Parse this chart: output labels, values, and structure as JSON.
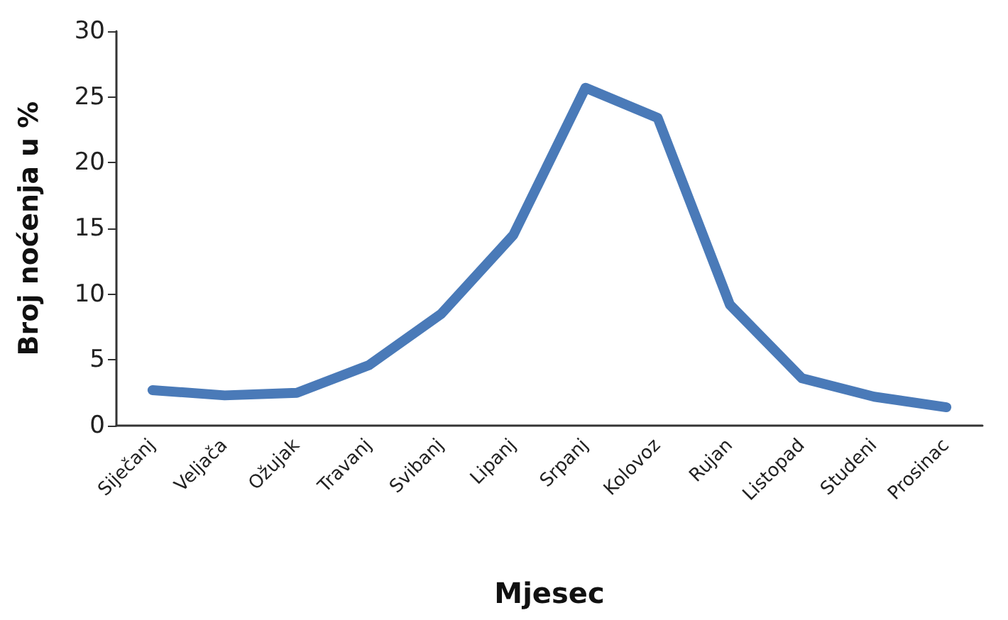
{
  "chart_data": {
    "type": "line",
    "xlabel": "Mjesec",
    "ylabel": "Broj noćenja u %",
    "categories": [
      "Siječanj",
      "Veljača",
      "Ožujak",
      "Travanj",
      "Svibanj",
      "Lipanj",
      "Srpanj",
      "Kolovoz",
      "Rujan",
      "Listopad",
      "Studeni",
      "Prosinac"
    ],
    "series": [
      {
        "color": "#4a7ab8",
        "values": [
          2.7,
          2.3,
          2.5,
          4.6,
          8.5,
          14.5,
          25.7,
          23.4,
          9.2,
          3.6,
          2.2,
          1.4
        ]
      }
    ],
    "ylim": [
      0,
      30
    ],
    "yticks": [
      0,
      5,
      10,
      15,
      20,
      25,
      30
    ],
    "grid": false,
    "marker": "none",
    "line_style": "solid"
  }
}
